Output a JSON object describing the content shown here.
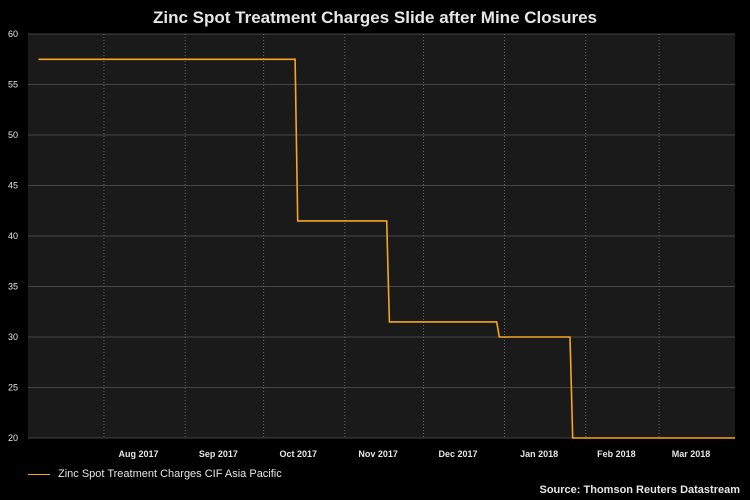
{
  "chart_data": {
    "type": "line",
    "title": "Zinc Spot Treatment Charges Slide after Mine Closures",
    "x_tick_labels": [
      "Aug 2017",
      "Sep 2017",
      "Oct 2017",
      "Nov 2017",
      "Dec 2017",
      "Jan 2018",
      "Feb 2018",
      "Mar 2018"
    ],
    "y_ticks": [
      20,
      25,
      30,
      35,
      40,
      45,
      50,
      55,
      60
    ],
    "ylim": [
      20,
      60
    ],
    "xlim": [
      "2017-07-03",
      "2018-03-30"
    ],
    "grid": true,
    "legend_position": "bottom-left",
    "series": [
      {
        "name": "Zinc Spot Treatment Charges CIF Asia Pacific",
        "color": "#f5a623",
        "step": true,
        "points": [
          [
            "2017-07-07",
            57.5
          ],
          [
            "2017-10-13",
            57.5
          ],
          [
            "2017-10-14",
            41.5
          ],
          [
            "2017-11-17",
            41.5
          ],
          [
            "2017-11-18",
            31.5
          ],
          [
            "2017-12-29",
            31.5
          ],
          [
            "2017-12-30",
            30
          ],
          [
            "2018-01-26",
            30
          ],
          [
            "2018-01-27",
            20
          ],
          [
            "2018-03-30",
            20
          ]
        ]
      }
    ]
  },
  "source": "Source: Thomson Reuters Datastream"
}
